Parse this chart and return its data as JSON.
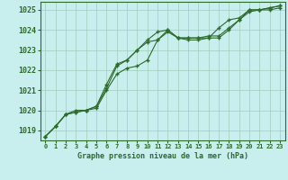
{
  "title": "Graphe pression niveau de la mer (hPa)",
  "x_labels": [
    "0",
    "1",
    "2",
    "3",
    "4",
    "5",
    "6",
    "7",
    "8",
    "9",
    "10",
    "11",
    "12",
    "13",
    "14",
    "15",
    "16",
    "17",
    "18",
    "19",
    "20",
    "21",
    "22",
    "23"
  ],
  "hours": [
    0,
    1,
    2,
    3,
    4,
    5,
    6,
    7,
    8,
    9,
    10,
    11,
    12,
    13,
    14,
    15,
    16,
    17,
    18,
    19,
    20,
    21,
    22,
    23
  ],
  "line1": [
    1018.7,
    1019.2,
    1019.8,
    1020.0,
    1020.0,
    1020.1,
    1021.0,
    1021.8,
    1022.1,
    1022.2,
    1022.5,
    1023.5,
    1023.9,
    1023.6,
    1023.5,
    1023.5,
    1023.6,
    1023.6,
    1024.0,
    1024.5,
    1024.9,
    1025.0,
    1025.0,
    1025.1
  ],
  "line2": [
    1018.7,
    1019.2,
    1019.8,
    1019.9,
    1020.0,
    1020.2,
    1021.1,
    1022.2,
    1022.5,
    1023.0,
    1023.5,
    1023.9,
    1024.0,
    1023.6,
    1023.6,
    1023.6,
    1023.7,
    1023.7,
    1024.1,
    1024.5,
    1025.0,
    1025.0,
    1025.1,
    1025.2
  ],
  "line3": [
    1018.7,
    1019.2,
    1019.8,
    1019.9,
    1020.0,
    1020.2,
    1021.3,
    1022.3,
    1022.5,
    1023.0,
    1023.4,
    1023.5,
    1024.0,
    1023.6,
    1023.6,
    1023.6,
    1023.6,
    1024.1,
    1024.5,
    1024.6,
    1025.0,
    1025.0,
    1025.1,
    1025.2
  ],
  "line_color": "#2d6a2d",
  "bg_color": "#c8eeee",
  "grid_color": "#a0ccbb",
  "ylim_min": 1018.5,
  "ylim_max": 1025.4,
  "yticks": [
    1019,
    1020,
    1021,
    1022,
    1023,
    1024,
    1025
  ]
}
